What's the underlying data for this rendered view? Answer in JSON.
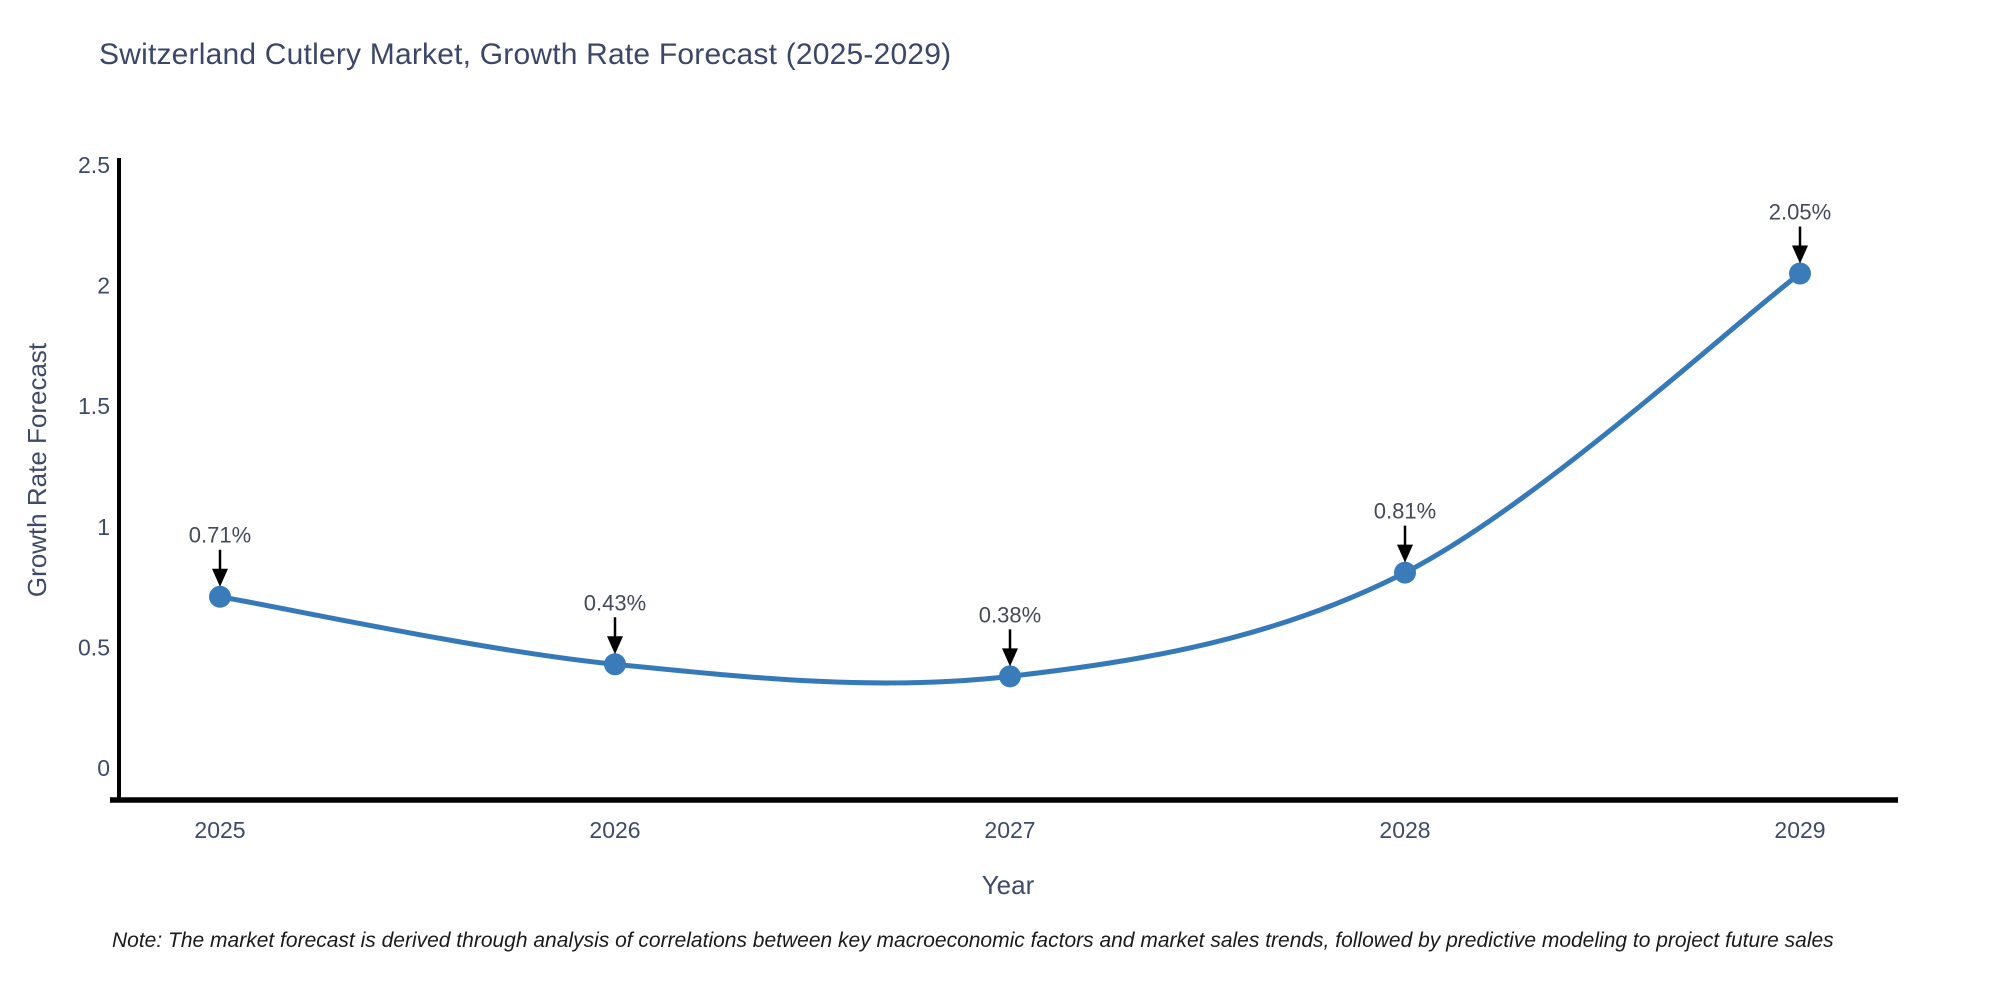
{
  "note": "Note: The market forecast is derived through analysis of correlations between key macroeconomic factors and market sales trends, followed by predictive modeling to project future sales",
  "colors": {
    "title_text": "#3b4769",
    "axis_text": "#3d4a68",
    "annotation_text": "#444a58",
    "line": "#3679b8",
    "marker": "#3a7cba",
    "axis_line": "#000000",
    "arrow": "#000000",
    "note_text": "#1a1a1a",
    "background": "#ffffff"
  },
  "chart_data": {
    "type": "line",
    "title": "Switzerland Cutlery Market, Growth Rate Forecast (2025-2029)",
    "xlabel": "Year",
    "ylabel": "Growth Rate Forecast",
    "x": [
      "2025",
      "2026",
      "2027",
      "2028",
      "2029"
    ],
    "series": [
      {
        "name": "Growth Rate Forecast",
        "values": [
          0.71,
          0.43,
          0.38,
          0.81,
          2.05
        ]
      }
    ],
    "point_labels": [
      "0.71%",
      "0.43%",
      "0.38%",
      "0.81%",
      "2.05%"
    ],
    "ylim": [
      0,
      2.5
    ],
    "yticks": [
      0,
      0.5,
      1,
      1.5,
      2,
      2.5
    ],
    "grid": false,
    "legend": "none",
    "line_shape": "spline",
    "markers": true,
    "annotation_style": "value-label-with-down-arrow"
  }
}
